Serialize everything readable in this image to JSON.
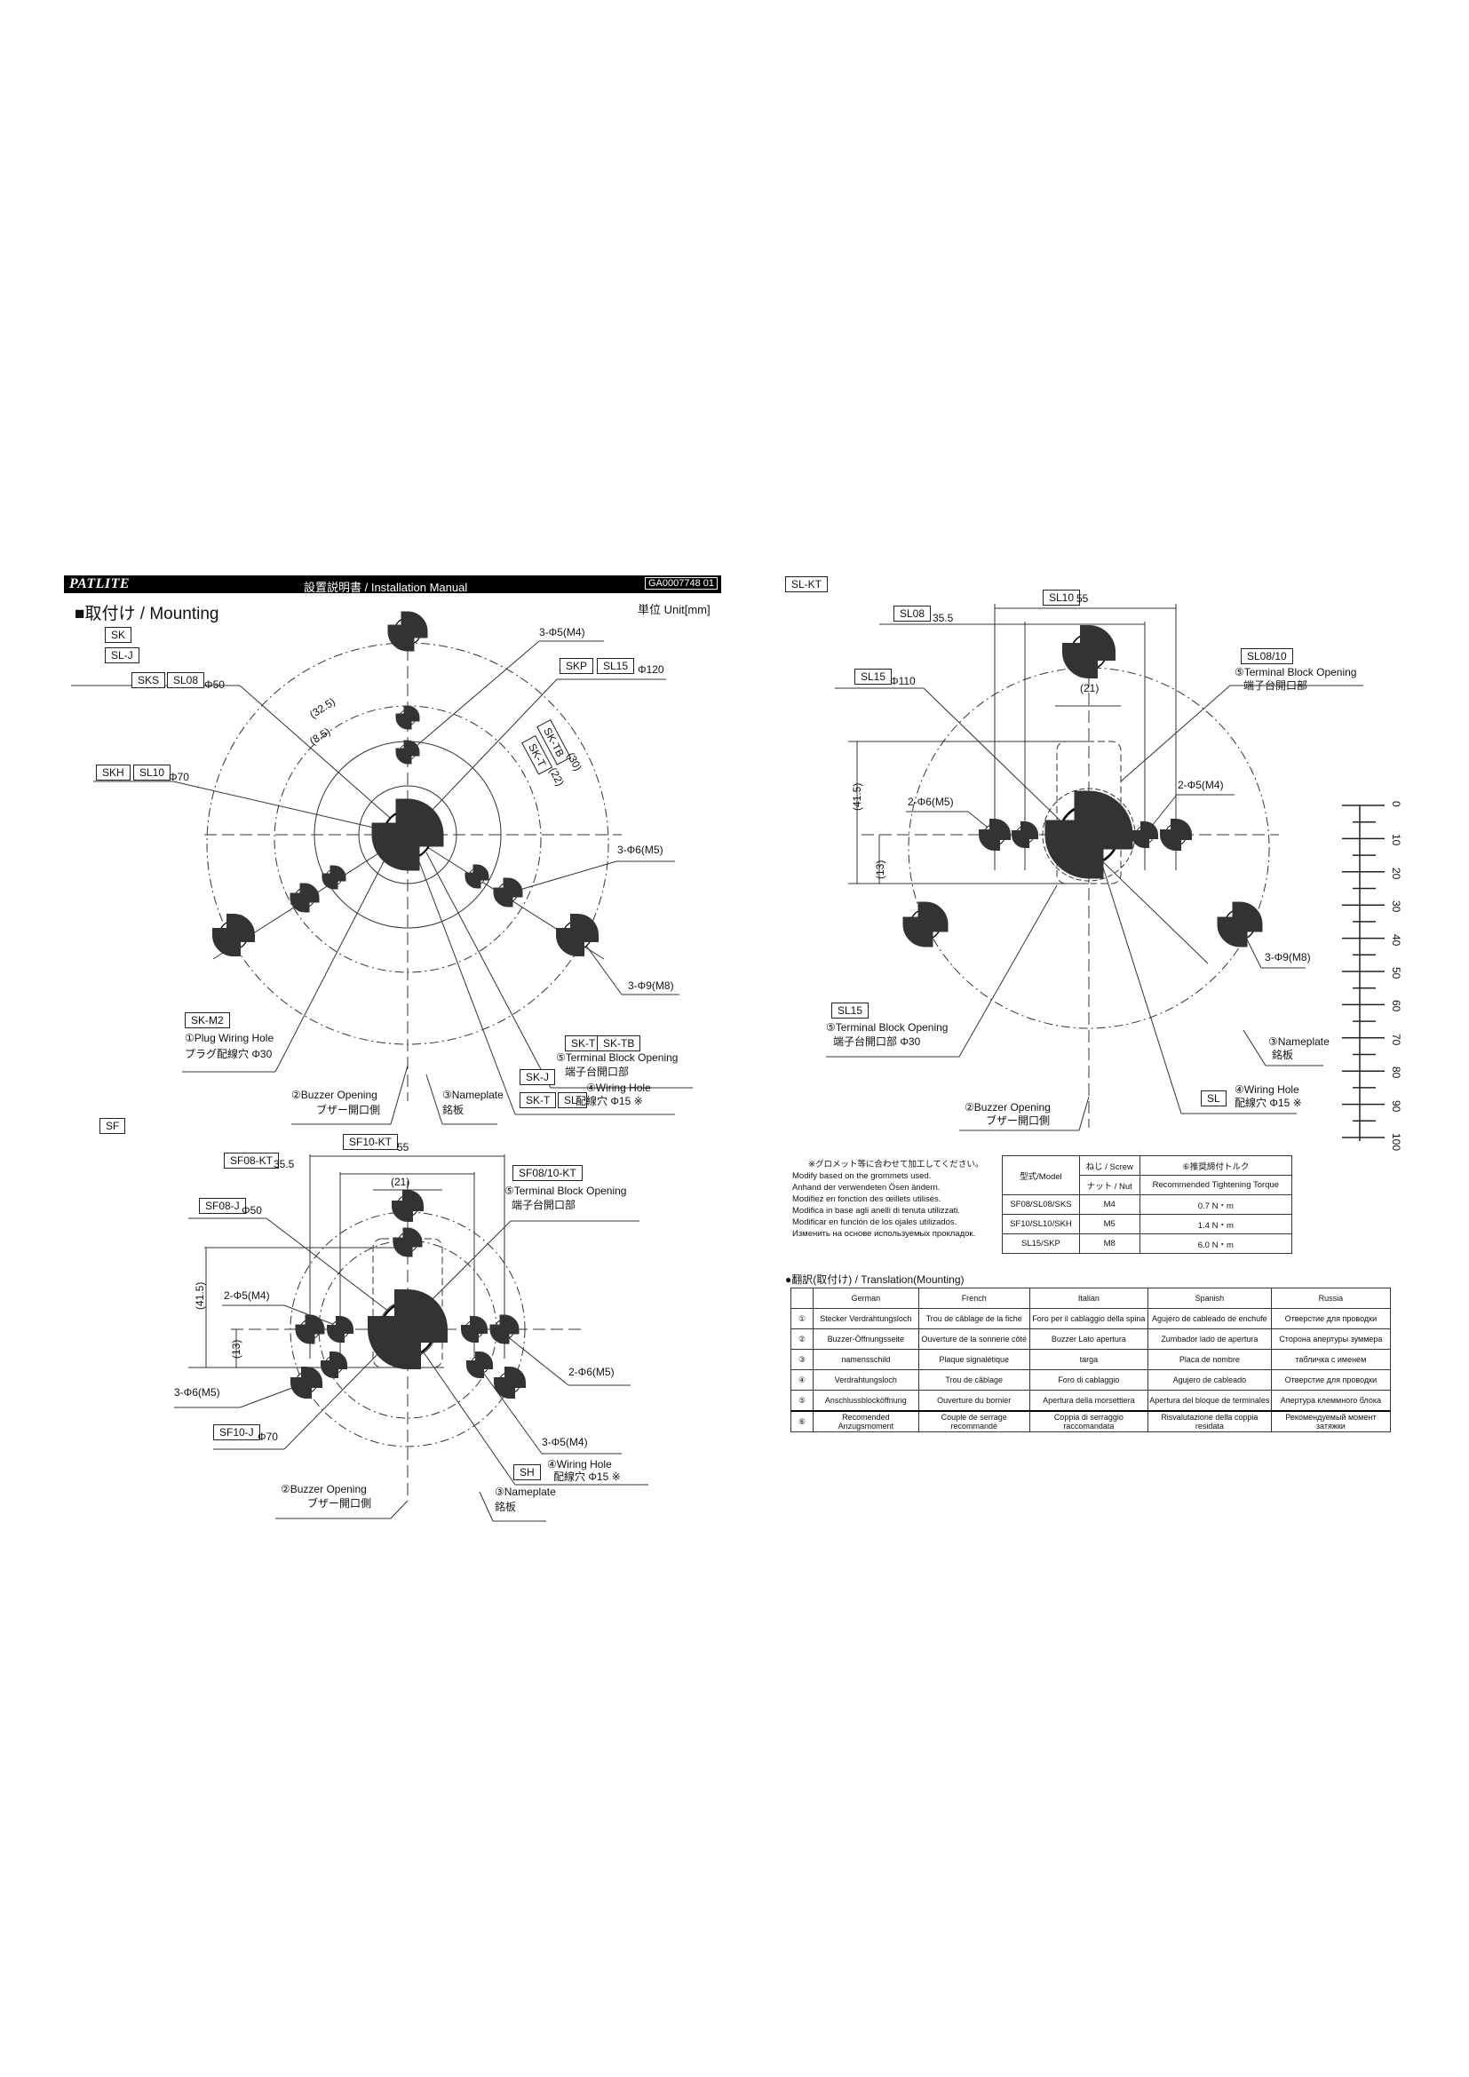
{
  "header": {
    "logo": "PATLITE",
    "title": "設置説明書 / Installation Manual",
    "doc_number": "GA0007748 01"
  },
  "section_title": "■取付け / Mounting",
  "unit": "単位 Unit[mm]",
  "sk": {
    "labels": [
      "SK",
      "SL-J",
      "SKS",
      "SL08",
      "Φ50",
      "SKH",
      "SL10",
      "Φ70",
      "3-Φ5(M4)",
      "SKP",
      "SL15",
      "Φ120",
      "(32.5)",
      "(8.5)",
      "SK-TB",
      "SK-T",
      "(30)",
      "(22)",
      "3-Φ6(M5)",
      "3-Φ9(M8)",
      "SK-M2",
      "①Plug Wiring Hole",
      "プラグ配線穴 Φ30",
      "SK-T",
      "SK-TB",
      "⑤Terminal Block Opening",
      "端子台開口部",
      "SK-J",
      "④Wiring Hole",
      "SK-T",
      "SL-",
      "配線穴 Φ15 ※",
      "②Buzzer Opening",
      "ブザー開口側",
      "③Nameplate",
      "銘板"
    ]
  },
  "sf": {
    "labels": [
      "SF",
      "SF10-KT",
      "55",
      "SF08-KT",
      "35.5",
      "(21)",
      "SF08/10-KT",
      "⑤Terminal Block Opening",
      "端子台開口部",
      "SF08-J",
      "Φ50",
      "(41.5)",
      "2-Φ5(M4)",
      "(13)",
      "2-Φ6(M5)",
      "3-Φ6(M5)",
      "SF10-J",
      "Φ70",
      "3-Φ5(M4)",
      "SH",
      "④Wiring Hole",
      "配線穴 Φ15 ※",
      "②Buzzer Opening",
      "ブザー開口側",
      "③Nameplate",
      "銘板"
    ]
  },
  "slkt": {
    "labels": [
      "SL-KT",
      "SL10",
      "55",
      "SL08",
      "35.5",
      "SL08/10",
      "⑤Terminal Block Opening",
      "端子台開口部",
      "SL15",
      "Φ110",
      "(21)",
      "(41.5)",
      "2-Φ6(M5)",
      "2-Φ5(M4)",
      "(13)",
      "3-Φ9(M8)",
      "SL15",
      "⑤Terminal Block Opening",
      "端子台開口部 Φ30",
      "③Nameplate",
      "銘板",
      "SL",
      "④Wiring Hole",
      "配線穴 Φ15 ※",
      "②Buzzer Opening",
      "ブザー開口側"
    ]
  },
  "ruler": {
    "ticks": [
      "0",
      "10",
      "20",
      "30",
      "40",
      "50",
      "60",
      "70",
      "80",
      "90",
      "100"
    ]
  },
  "note": [
    "※グロメット等に合わせて加工してください。",
    "Modify based on the grommets used.",
    "Anhand der verwendeten Ösen ändern.",
    "Modifiez en fonction des œillets utilisés.",
    "Modifica in base agli anelli di tenuta utilizzati.",
    "Modificar en función de los ojales utilizados.",
    "Изменить на основе используемых прокладок."
  ],
  "torque_table": {
    "headers": {
      "model": "型式/Model",
      "screw": "ねじ / Screw",
      "nut": "ナット / Nut",
      "torque_jp": "⑥推奨締付トルク",
      "torque_en": "Recommended Tightening Torque"
    },
    "rows": [
      [
        "SF08/SL08/SKS",
        "M4",
        "0.7 N・m"
      ],
      [
        "SF10/SL10/SKH",
        "M5",
        "1.4 N・m"
      ],
      [
        "SL15/SKP",
        "M8",
        "6.0 N・m"
      ]
    ]
  },
  "translation": {
    "title": "●翻訳(取付け) / Translation(Mounting)",
    "headers": [
      "",
      "German",
      "French",
      "Italian",
      "Spanish",
      "Russia"
    ],
    "rows": [
      [
        "①",
        "Stecker Verdrahtungsloch",
        "Trou de câblage de la fiche",
        "Foro per il cablaggio della spina",
        "Agujero de cableado de enchufe",
        "Отверстие для проводки"
      ],
      [
        "②",
        "Buzzer-Öffnungsseite",
        "Ouverture de la sonnerie côté",
        "Buzzer Lato apertura",
        "Zumbador lado de apertura",
        "Сторона апертуры зуммера"
      ],
      [
        "③",
        "namensschild",
        "Plaque signalétique",
        "targa",
        "Placa de nombre",
        "табличка с именем"
      ],
      [
        "④",
        "Verdrahtungsloch",
        "Trou de câblage",
        "Foro di cablaggio",
        "Agujero de cableado",
        "Отверстие для проводки"
      ],
      [
        "⑤",
        "Anschlussblocköffnung",
        "Ouverture du bornier",
        "Apertura della morsettiera",
        "Apertura del bloque de terminales",
        "Апертура клеммного блока"
      ],
      [
        "⑥",
        "Recomended Anzugsmoment",
        "Couple de serrage recommandé",
        "Coppia di serraggio raccomandata",
        "Risvalutazione della coppia residata",
        "Рекомендуемый момент затяжки"
      ]
    ]
  }
}
